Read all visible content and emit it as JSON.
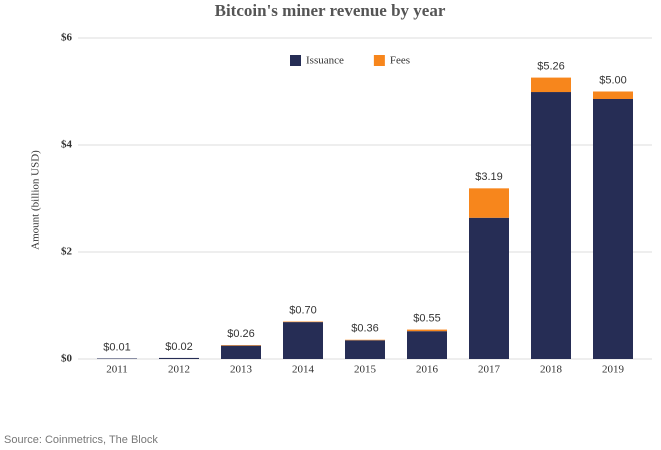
{
  "chart_data": {
    "type": "stacked-bar",
    "title": "Bitcoin's miner revenue by year",
    "y_label": "Amount (billion USD)",
    "source": "Source: Coinmetrics, The Block",
    "categories": [
      "2011",
      "2012",
      "2013",
      "2014",
      "2015",
      "2016",
      "2017",
      "2018",
      "2019"
    ],
    "series": [
      {
        "name": "Issuance",
        "color": "#262d55",
        "values": [
          0.01,
          0.02,
          0.25,
          0.69,
          0.35,
          0.52,
          2.64,
          4.99,
          4.86
        ]
      },
      {
        "name": "Fees",
        "color": "#f7861c",
        "values": [
          0,
          0,
          0.01,
          0.01,
          0.01,
          0.03,
          0.55,
          0.27,
          0.14
        ]
      }
    ],
    "totals": {
      "values": [
        0.01,
        0.02,
        0.26,
        0.7,
        0.36,
        0.55,
        3.19,
        5.26,
        5.0
      ],
      "value_labels": [
        "$0.01",
        "$0.02",
        "$0.26",
        "$0.70",
        "$0.36",
        "$0.55",
        "$3.19",
        "$5.26",
        "$5.00"
      ]
    },
    "ylim": [
      0,
      6
    ],
    "yticks": [
      {
        "value": 0,
        "label": "$0"
      },
      {
        "value": 2,
        "label": "$2"
      },
      {
        "value": 4,
        "label": "$4"
      },
      {
        "value": 6,
        "label": "$6"
      }
    ],
    "grid": true,
    "legend": "top"
  }
}
